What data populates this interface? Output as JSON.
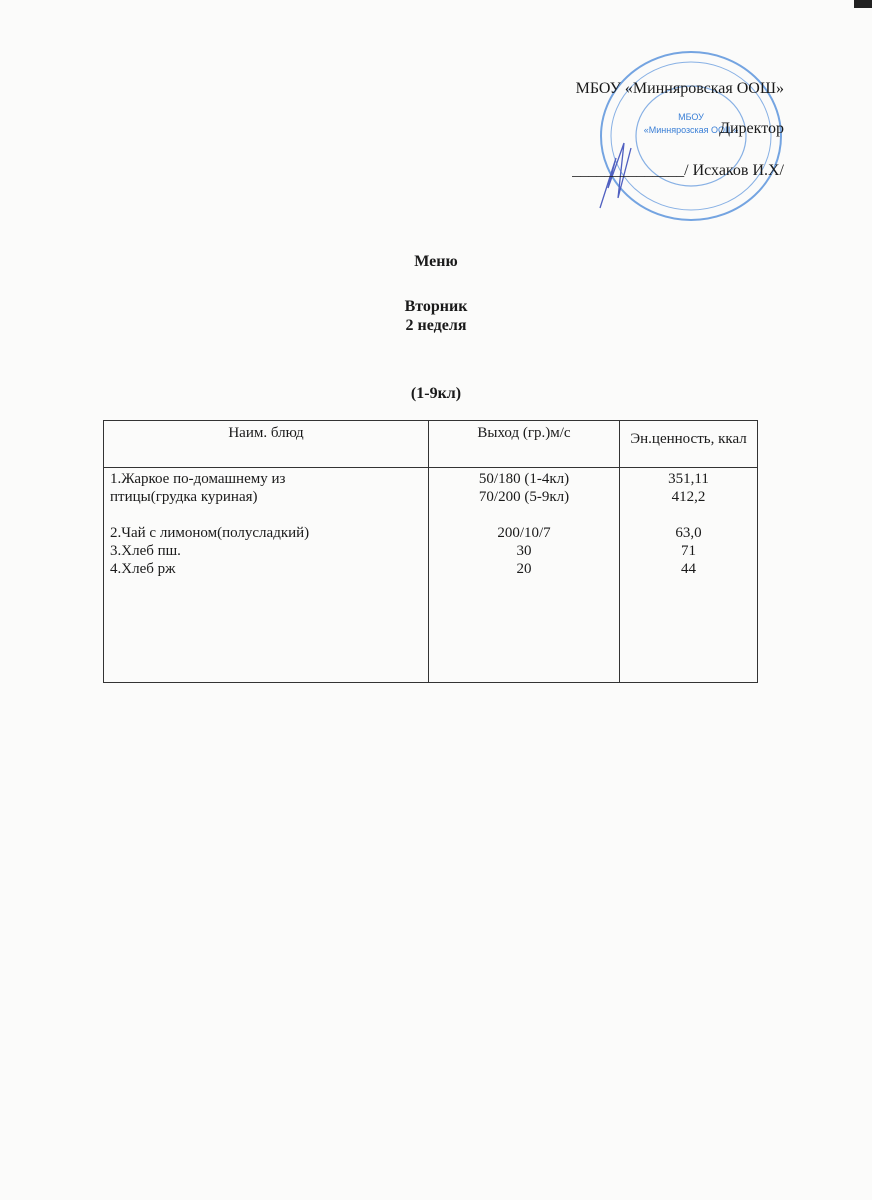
{
  "header": {
    "org": "МБОУ «Минняровская ООШ»",
    "position": "Директор",
    "signature_line": "______________/ Исхаков И.Х/"
  },
  "stamp": {
    "center_line1": "МБОУ",
    "center_line2": "«Миннярозская ООШ»",
    "color": "#3a7fd6"
  },
  "title": "Меню",
  "day": "Вторник",
  "week": "2 неделя",
  "classes": "(1-9кл)",
  "table": {
    "headers": [
      "Наим. блюд",
      "Выход (гр.)м/с",
      "Эн.ценность, ккал"
    ],
    "rows": [
      {
        "name": "1.Жаркое по-домашнему из птицы(грудка куриная)",
        "yield": [
          "50/180 (1-4кл)",
          "70/200 (5-9кл)"
        ],
        "kcal": [
          "351,11",
          "412,2"
        ]
      },
      {
        "name": "2.Чай с лимоном(полусладкий)",
        "yield": [
          "200/10/7"
        ],
        "kcal": [
          "63,0"
        ]
      },
      {
        "name": "3.Хлеб пш.",
        "yield": [
          "30"
        ],
        "kcal": [
          "71"
        ]
      },
      {
        "name": "4.Хлеб рж",
        "yield": [
          "20"
        ],
        "kcal": [
          "44"
        ]
      }
    ]
  }
}
